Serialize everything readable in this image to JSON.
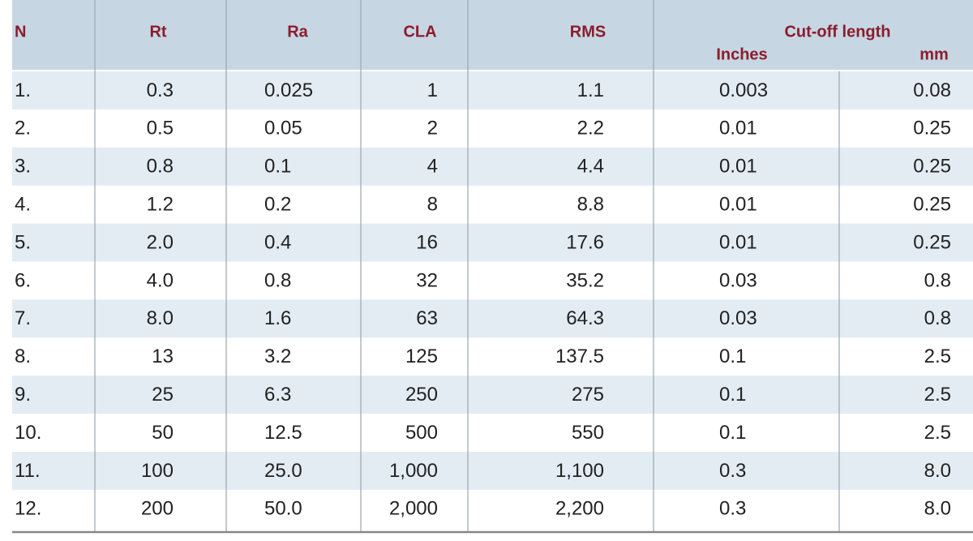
{
  "table": {
    "header": [
      "N",
      "Rt",
      "Ra",
      "CLA",
      "RMS"
    ],
    "group_header": "Cut-off length",
    "sub_header": [
      "Inches",
      "mm"
    ],
    "rows": [
      [
        "1.",
        "0.3",
        "0.025",
        "1",
        "1.1",
        "0.003",
        "0.08"
      ],
      [
        "2.",
        "0.5",
        "0.05",
        "2",
        "2.2",
        "0.01",
        "0.25"
      ],
      [
        "3.",
        "0.8",
        "0.1",
        "4",
        "4.4",
        "0.01",
        "0.25"
      ],
      [
        "4.",
        "1.2",
        "0.2",
        "8",
        "8.8",
        "0.01",
        "0.25"
      ],
      [
        "5.",
        "2.0",
        "0.4",
        "16",
        "17.6",
        "0.01",
        "0.25"
      ],
      [
        "6.",
        "4.0",
        "0.8",
        "32",
        "35.2",
        "0.03",
        "0.8"
      ],
      [
        "7.",
        "8.0",
        "1.6",
        "63",
        "64.3",
        "0.03",
        "0.8"
      ],
      [
        "8.",
        "13",
        "3.2",
        "125",
        "137.5",
        "0.1",
        "2.5"
      ],
      [
        "9.",
        "25",
        "6.3",
        "250",
        "275",
        "0.1",
        "2.5"
      ],
      [
        "10.",
        "50",
        "12.5",
        "500",
        "550",
        "0.1",
        "2.5"
      ],
      [
        "11.",
        "100",
        "25.0",
        "1,000",
        "1,100",
        "0.3",
        "8.0"
      ],
      [
        "12.",
        "200",
        "50.0",
        "2,000",
        "2,200",
        "0.3",
        "8.0"
      ]
    ]
  }
}
